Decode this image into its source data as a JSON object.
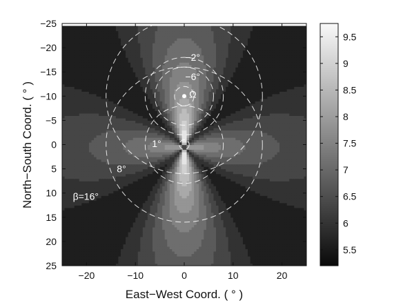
{
  "chart_data": {
    "type": "heatmap",
    "xlabel": "East−West Coord. ( ° )",
    "ylabel": "North−South Coord. ( ° )",
    "xlim": [
      -25,
      25
    ],
    "ylim": [
      25,
      -25
    ],
    "x_ticks": [
      -20,
      -10,
      0,
      10,
      20
    ],
    "y_ticks": [
      -25,
      -20,
      -15,
      -10,
      -5,
      0,
      5,
      10,
      15,
      20,
      25
    ],
    "x_tick_labels": [
      "−20",
      "−10",
      "0",
      "10",
      "20"
    ],
    "y_tick_labels": [
      "−25",
      "−20",
      "−15",
      "−10",
      "−5",
      "0",
      "5",
      "10",
      "15",
      "20",
      "25"
    ],
    "colorbar": {
      "range": [
        5.2,
        9.75
      ],
      "ticks": [
        5.5,
        6,
        6.5,
        7,
        7.5,
        8,
        8.5,
        9,
        9.5
      ],
      "tick_labels": [
        "5.5",
        "6",
        "6.5",
        "7",
        "7.5",
        "8",
        "8.5",
        "9",
        "9.5"
      ],
      "colormap": "gray"
    },
    "field": {
      "description_of_pattern": "four-lobed petal pattern along 0°, 45°, 90°, 135° directions, brightest along the north-south axis",
      "grid_extent": [
        -25,
        25
      ]
    },
    "overlay_circles": {
      "style": "white dashed",
      "center_point": [
        0,
        -10
      ],
      "radii": [
        2,
        6,
        8,
        16
      ],
      "origin_radii": [
        1,
        8,
        16
      ]
    },
    "annotations": [
      {
        "text": "−2°",
        "x": 0.2,
        "y": -17.3
      },
      {
        "text": "−6°",
        "x": 0.2,
        "y": -13.3
      },
      {
        "text": "Ω",
        "x": 1.0,
        "y": -9.7
      },
      {
        "text": "1°",
        "x": -6.6,
        "y": 0.5
      },
      {
        "text": "8°",
        "x": -13.8,
        "y": 5.7
      },
      {
        "text": "β=16°",
        "x": -22.8,
        "y": 11.4
      }
    ],
    "marker": {
      "label": "Ω",
      "x": 0,
      "y": -10
    }
  }
}
